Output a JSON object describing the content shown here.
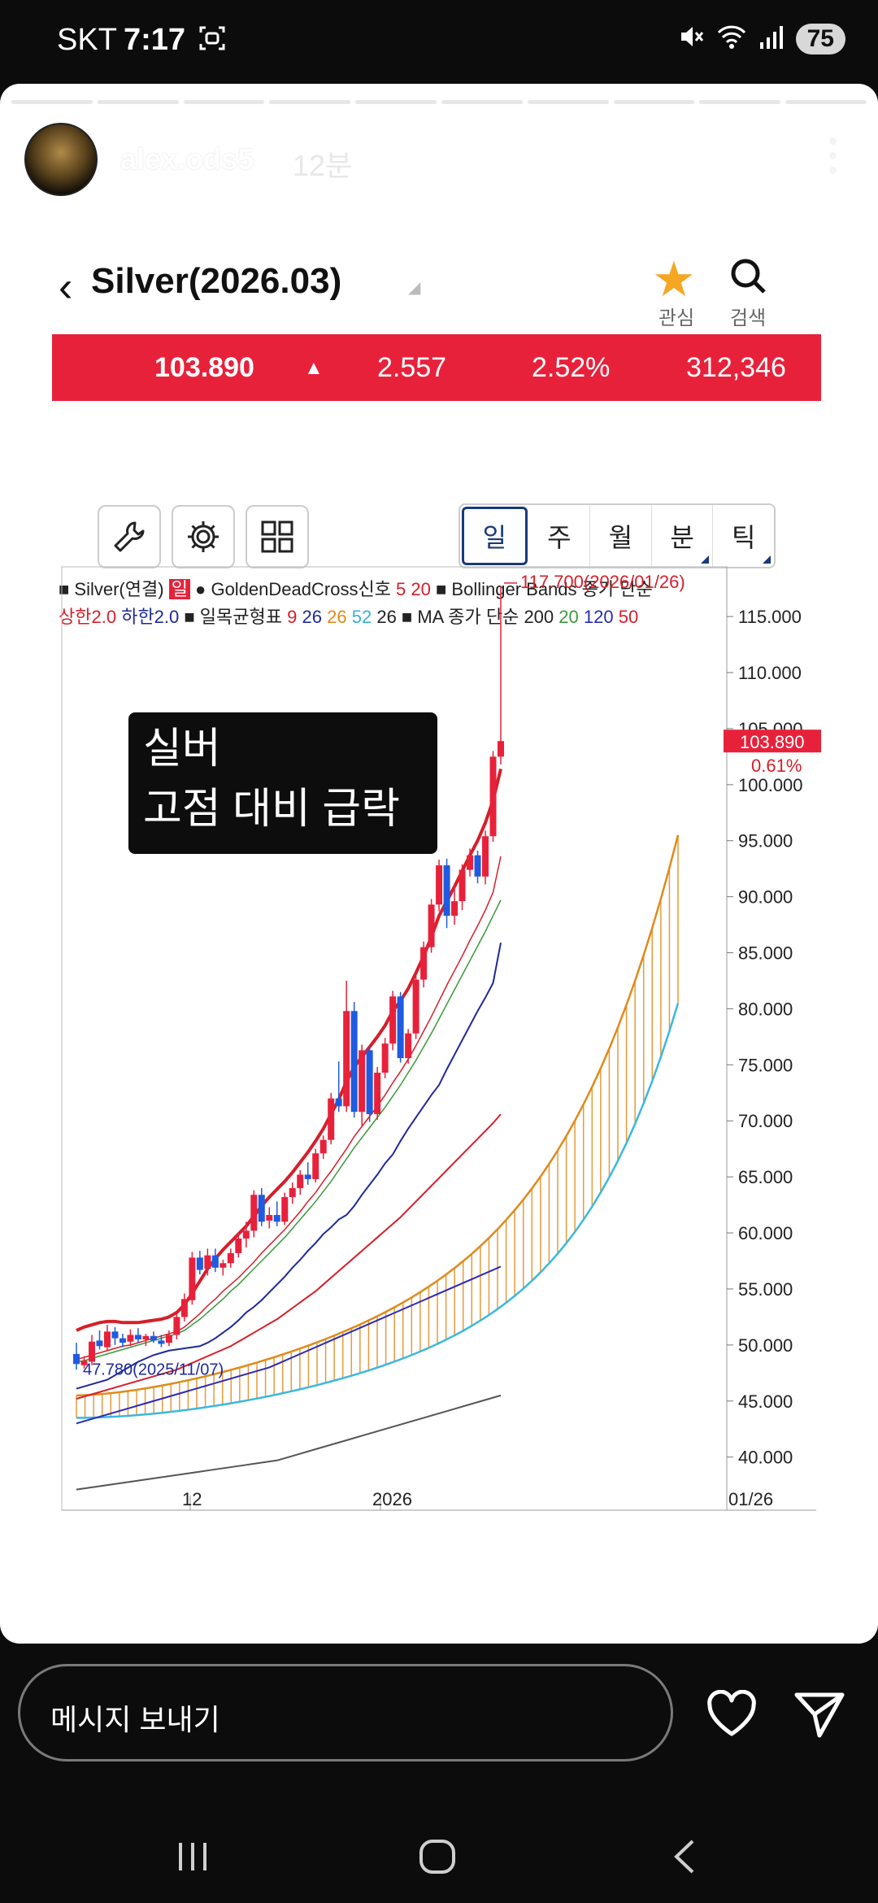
{
  "status_bar": {
    "carrier": "SKT",
    "time": "7:17",
    "battery": "75"
  },
  "story": {
    "username": "alex.ods5",
    "time_ago": "12분",
    "progress_segments": 10,
    "progress_done": 10
  },
  "app": {
    "symbol": "Silver(2026.03)",
    "fav_label": "관심",
    "search_label": "검색",
    "quote": {
      "price": "103.890",
      "change": "2.557",
      "change_pct": "2.52%",
      "volume": "312,346"
    },
    "period_tabs": [
      "일",
      "주",
      "월",
      "분",
      "틱"
    ],
    "selected_tab": "일",
    "legend": {
      "series": "Silver(연결)",
      "series_badge": "일",
      "gdc": "GoldenDeadCross신호",
      "gdc_params": [
        "5",
        "20"
      ],
      "bb": "Bollinger Bands 종가 단순",
      "bb_upper": "상한2.0",
      "bb_lower": "하한2.0",
      "ichimoku": "일목균형표",
      "ichimoku_params": [
        "9",
        "26",
        "26",
        "52",
        "26"
      ],
      "ma": "MA 종가 단순",
      "ma_params": [
        "200",
        "20",
        "120",
        "50"
      ]
    },
    "note_line1": "실버",
    "note_line2": "고점 대비 급락"
  },
  "chart_data": {
    "type": "candlestick",
    "y_ticks": [
      "115.000",
      "110.000",
      "105.000",
      "100.000",
      "95.000",
      "90.000",
      "85.000",
      "80.000",
      "75.000",
      "70.000",
      "65.000",
      "60.000",
      "55.000",
      "50.000",
      "45.000",
      "40.000"
    ],
    "ylim": [
      37,
      119
    ],
    "x_ticks": [
      "12",
      "2026"
    ],
    "x_axis_right_label": "01/26",
    "last_price_label": "103.890",
    "last_change_label": "0.61%",
    "high_annotation": "117.700(2026/01/26)",
    "low_annotation": "47.780(2025/11/07)",
    "candles": [
      {
        "o": 49.2,
        "h": 50.2,
        "l": 47.8,
        "c": 48.3
      },
      {
        "o": 48.2,
        "h": 49.0,
        "l": 47.9,
        "c": 48.6
      },
      {
        "o": 48.5,
        "h": 50.9,
        "l": 48.2,
        "c": 50.3
      },
      {
        "o": 50.4,
        "h": 51.3,
        "l": 49.6,
        "c": 49.9
      },
      {
        "o": 49.8,
        "h": 51.8,
        "l": 49.5,
        "c": 51.2
      },
      {
        "o": 51.2,
        "h": 51.6,
        "l": 50.0,
        "c": 50.6
      },
      {
        "o": 50.6,
        "h": 51.0,
        "l": 49.8,
        "c": 50.2
      },
      {
        "o": 50.3,
        "h": 51.4,
        "l": 49.9,
        "c": 50.9
      },
      {
        "o": 50.9,
        "h": 51.5,
        "l": 50.2,
        "c": 50.5
      },
      {
        "o": 50.5,
        "h": 51.0,
        "l": 49.9,
        "c": 50.8
      },
      {
        "o": 50.8,
        "h": 51.2,
        "l": 50.2,
        "c": 50.4
      },
      {
        "o": 50.4,
        "h": 50.9,
        "l": 49.8,
        "c": 50.1
      },
      {
        "o": 50.2,
        "h": 51.3,
        "l": 49.9,
        "c": 50.9
      },
      {
        "o": 50.9,
        "h": 52.8,
        "l": 50.5,
        "c": 52.5
      },
      {
        "o": 52.5,
        "h": 54.6,
        "l": 52.1,
        "c": 54.1
      },
      {
        "o": 54.0,
        "h": 58.3,
        "l": 53.6,
        "c": 57.8
      },
      {
        "o": 57.8,
        "h": 58.4,
        "l": 56.3,
        "c": 56.7
      },
      {
        "o": 56.8,
        "h": 58.6,
        "l": 56.2,
        "c": 58.0
      },
      {
        "o": 58.0,
        "h": 58.6,
        "l": 56.5,
        "c": 56.9
      },
      {
        "o": 56.9,
        "h": 57.6,
        "l": 56.2,
        "c": 57.3
      },
      {
        "o": 57.3,
        "h": 58.6,
        "l": 56.9,
        "c": 58.2
      },
      {
        "o": 58.2,
        "h": 59.9,
        "l": 57.8,
        "c": 59.5
      },
      {
        "o": 59.5,
        "h": 61.0,
        "l": 58.7,
        "c": 60.2
      },
      {
        "o": 60.2,
        "h": 63.8,
        "l": 59.6,
        "c": 63.4
      },
      {
        "o": 63.4,
        "h": 64.0,
        "l": 60.6,
        "c": 61.0
      },
      {
        "o": 61.1,
        "h": 62.3,
        "l": 60.4,
        "c": 61.6
      },
      {
        "o": 61.6,
        "h": 62.8,
        "l": 60.6,
        "c": 61.0
      },
      {
        "o": 61.0,
        "h": 63.6,
        "l": 60.7,
        "c": 63.2
      },
      {
        "o": 63.2,
        "h": 64.5,
        "l": 62.6,
        "c": 64.0
      },
      {
        "o": 64.0,
        "h": 65.6,
        "l": 63.4,
        "c": 65.2
      },
      {
        "o": 65.2,
        "h": 66.3,
        "l": 64.3,
        "c": 64.8
      },
      {
        "o": 64.8,
        "h": 67.5,
        "l": 64.5,
        "c": 67.1
      },
      {
        "o": 67.1,
        "h": 68.7,
        "l": 66.6,
        "c": 68.3
      },
      {
        "o": 68.3,
        "h": 72.5,
        "l": 67.9,
        "c": 72.0
      },
      {
        "o": 72.0,
        "h": 75.3,
        "l": 70.8,
        "c": 71.3
      },
      {
        "o": 71.3,
        "h": 82.5,
        "l": 70.8,
        "c": 79.8
      },
      {
        "o": 79.8,
        "h": 80.6,
        "l": 70.3,
        "c": 70.8
      },
      {
        "o": 70.8,
        "h": 76.8,
        "l": 69.5,
        "c": 76.3
      },
      {
        "o": 76.3,
        "h": 76.7,
        "l": 69.9,
        "c": 70.6
      },
      {
        "o": 70.6,
        "h": 74.8,
        "l": 70.1,
        "c": 74.3
      },
      {
        "o": 74.3,
        "h": 77.4,
        "l": 73.8,
        "c": 76.9
      },
      {
        "o": 76.9,
        "h": 81.6,
        "l": 76.3,
        "c": 81.1
      },
      {
        "o": 81.1,
        "h": 81.5,
        "l": 75.2,
        "c": 75.6
      },
      {
        "o": 75.6,
        "h": 78.2,
        "l": 75.1,
        "c": 77.8
      },
      {
        "o": 77.8,
        "h": 83.0,
        "l": 77.3,
        "c": 82.6
      },
      {
        "o": 82.6,
        "h": 86.0,
        "l": 81.9,
        "c": 85.5
      },
      {
        "o": 85.5,
        "h": 89.8,
        "l": 85.0,
        "c": 89.3
      },
      {
        "o": 89.3,
        "h": 93.3,
        "l": 88.7,
        "c": 92.8
      },
      {
        "o": 92.8,
        "h": 93.4,
        "l": 87.2,
        "c": 88.3
      },
      {
        "o": 88.3,
        "h": 91.2,
        "l": 87.5,
        "c": 89.6
      },
      {
        "o": 89.6,
        "h": 92.9,
        "l": 88.8,
        "c": 92.4
      },
      {
        "o": 92.4,
        "h": 94.3,
        "l": 91.8,
        "c": 93.7
      },
      {
        "o": 93.7,
        "h": 94.1,
        "l": 91.2,
        "c": 91.8
      },
      {
        "o": 91.8,
        "h": 95.9,
        "l": 91.1,
        "c": 95.4
      },
      {
        "o": 95.4,
        "h": 103.0,
        "l": 94.9,
        "c": 102.5
      },
      {
        "o": 102.5,
        "h": 117.7,
        "l": 101.8,
        "c": 103.89
      }
    ],
    "series": [
      {
        "name": "Bollinger 상한2.0",
        "color": "#d71e2a",
        "values": [
          51.3,
          51.6,
          51.8,
          52.0,
          52.1,
          52.1,
          52.0,
          52.0,
          52.0,
          52.1,
          52.2,
          52.3,
          52.5,
          52.9,
          53.6,
          54.6,
          55.7,
          56.8,
          57.7,
          58.5,
          59.2,
          59.9,
          60.6,
          61.5,
          62.4,
          63.2,
          63.9,
          64.6,
          65.4,
          66.3,
          67.2,
          68.2,
          69.3,
          70.6,
          71.9,
          73.5,
          74.8,
          75.7,
          76.6,
          77.5,
          78.5,
          79.8,
          80.7,
          81.8,
          83.2,
          84.7,
          86.4,
          88.3,
          89.6,
          90.9,
          92.3,
          93.7,
          95.0,
          96.6,
          98.6,
          101.4
        ]
      },
      {
        "name": "Bollinger 하한2.0",
        "color": "#1e2a9a",
        "values": [
          46.1,
          46.3,
          46.5,
          46.7,
          46.9,
          47.3,
          47.7,
          48.1,
          48.5,
          48.8,
          49.1,
          49.3,
          49.5,
          49.6,
          49.7,
          49.8,
          49.9,
          50.2,
          50.6,
          51.1,
          51.6,
          52.2,
          52.9,
          53.4,
          54.0,
          54.7,
          55.4,
          56.1,
          56.9,
          57.6,
          58.4,
          59.1,
          59.9,
          60.5,
          61.2,
          61.6,
          62.4,
          63.4,
          64.3,
          65.2,
          66.2,
          67.0,
          68.2,
          69.3,
          70.3,
          71.3,
          72.3,
          73.2,
          74.6,
          75.9,
          77.2,
          78.5,
          79.8,
          81.0,
          82.3,
          85.9
        ]
      },
      {
        "name": "Bollinger 중심",
        "color": "#d71e2a",
        "values": [
          48.7,
          48.9,
          49.1,
          49.3,
          49.5,
          49.7,
          49.9,
          50.0,
          50.2,
          50.4,
          50.6,
          50.8,
          51.0,
          51.2,
          51.6,
          52.2,
          52.8,
          53.5,
          54.1,
          54.8,
          55.4,
          56.0,
          56.7,
          57.4,
          58.2,
          58.9,
          59.6,
          60.3,
          61.1,
          61.9,
          62.8,
          63.6,
          64.6,
          65.5,
          66.5,
          67.5,
          68.6,
          69.5,
          70.4,
          71.3,
          72.3,
          73.4,
          74.4,
          75.5,
          76.7,
          78.0,
          79.3,
          80.7,
          82.1,
          83.4,
          84.7,
          86.1,
          87.4,
          88.8,
          90.4,
          93.6
        ]
      },
      {
        "name": "MA 20",
        "color": "#3a9a3a",
        "values": [
          48.5,
          48.6,
          48.8,
          49.0,
          49.2,
          49.4,
          49.6,
          49.8,
          50.0,
          50.2,
          50.4,
          50.6,
          50.8,
          51.0,
          51.3,
          51.8,
          52.3,
          52.9,
          53.5,
          54.1,
          54.8,
          55.4,
          56.1,
          56.8,
          57.5,
          58.2,
          58.9,
          59.6,
          60.4,
          61.2,
          62.0,
          62.8,
          63.7,
          64.6,
          65.6,
          66.6,
          67.6,
          68.5,
          69.4,
          70.3,
          71.2,
          72.2,
          73.2,
          74.3,
          75.4,
          76.6,
          77.8,
          79.1,
          80.4,
          81.7,
          83.0,
          84.3,
          85.6,
          86.9,
          88.3,
          89.7
        ]
      },
      {
        "name": "MA 50",
        "color": "#d71e2a",
        "values": [
          45.2,
          45.4,
          45.6,
          45.8,
          46.0,
          46.2,
          46.4,
          46.6,
          46.8,
          47.0,
          47.2,
          47.4,
          47.6,
          47.8,
          48.1,
          48.4,
          48.7,
          49.0,
          49.3,
          49.6,
          49.9,
          50.3,
          50.7,
          51.1,
          51.5,
          51.9,
          52.3,
          52.8,
          53.3,
          53.8,
          54.3,
          54.8,
          55.4,
          56.0,
          56.6,
          57.2,
          57.8,
          58.4,
          59.0,
          59.6,
          60.2,
          60.8,
          61.4,
          62.1,
          62.8,
          63.5,
          64.2,
          64.9,
          65.6,
          66.3,
          67.0,
          67.7,
          68.4,
          69.1,
          69.8,
          70.6
        ]
      },
      {
        "name": "MA 120",
        "color": "#2a2ab8",
        "values": [
          43.0,
          43.2,
          43.4,
          43.6,
          43.8,
          44.0,
          44.2,
          44.4,
          44.6,
          44.8,
          45.0,
          45.2,
          45.4,
          45.6,
          45.8,
          46.0,
          46.2,
          46.4,
          46.6,
          46.8,
          47.0,
          47.2,
          47.4,
          47.6,
          47.8,
          48.0,
          48.3,
          48.6,
          48.9,
          49.2,
          49.5,
          49.8,
          50.1,
          50.4,
          50.7,
          51.0,
          51.3,
          51.6,
          51.9,
          52.2,
          52.5,
          52.8,
          53.1,
          53.4,
          53.7,
          54.0,
          54.3,
          54.6,
          54.9,
          55.2,
          55.5,
          55.8,
          56.1,
          56.4,
          56.7,
          57.0
        ]
      },
      {
        "name": "MA 200",
        "color": "#555555",
        "values": [
          37.1,
          37.2,
          37.3,
          37.4,
          37.5,
          37.6,
          37.7,
          37.8,
          37.9,
          38.0,
          38.1,
          38.2,
          38.3,
          38.4,
          38.5,
          38.6,
          38.7,
          38.8,
          38.9,
          39.0,
          39.1,
          39.2,
          39.3,
          39.4,
          39.5,
          39.6,
          39.7,
          39.9,
          40.1,
          40.3,
          40.5,
          40.7,
          40.9,
          41.1,
          41.3,
          41.5,
          41.7,
          41.9,
          42.1,
          42.3,
          42.5,
          42.7,
          42.9,
          43.1,
          43.3,
          43.5,
          43.7,
          43.9,
          44.1,
          44.3,
          44.5,
          44.7,
          44.9,
          45.1,
          45.3,
          45.5
        ]
      }
    ]
  },
  "bottom": {
    "message_placeholder": "메시지 보내기"
  }
}
